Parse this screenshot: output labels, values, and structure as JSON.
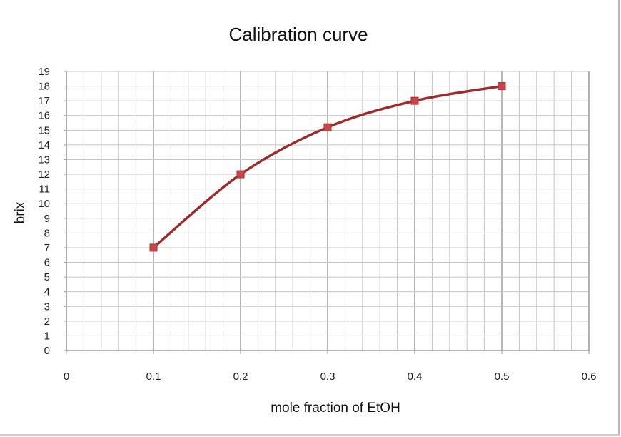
{
  "chart_data": {
    "type": "scatter",
    "title": "Calibration curve",
    "xlabel": "mole fraction of EtOH",
    "ylabel": "brix",
    "xlim": [
      0,
      0.6
    ],
    "ylim": [
      0,
      19
    ],
    "x_ticks": [
      "0",
      "0.1",
      "0.2",
      "0.3",
      "0.4",
      "0.5",
      "0.6"
    ],
    "y_ticks": [
      "0",
      "1",
      "2",
      "3",
      "4",
      "5",
      "6",
      "7",
      "8",
      "9",
      "10",
      "11",
      "12",
      "13",
      "14",
      "15",
      "16",
      "17",
      "18",
      "19"
    ],
    "grid": true,
    "series": [
      {
        "marker": "square",
        "line": "smooth",
        "x": [
          0.1,
          0.2,
          0.3,
          0.4,
          0.5
        ],
        "y": [
          7,
          12,
          15.2,
          17,
          18
        ]
      }
    ],
    "colors": {
      "line": "#9b2c2c",
      "marker": "#c8464b",
      "grid": "#c4c4c4",
      "axis": "#9a9a9a"
    }
  }
}
